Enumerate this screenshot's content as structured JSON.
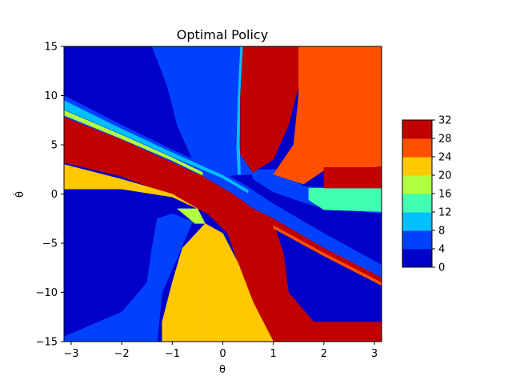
{
  "chart_data": {
    "type": "heatmap",
    "title": "Optimal Policy",
    "xlabel": "θ",
    "ylabel": "θ̇",
    "xlim": [
      -3.14159,
      3.14159
    ],
    "ylim": [
      -15,
      15
    ],
    "x_ticks": [
      -3,
      -2,
      -1,
      0,
      1,
      2,
      3
    ],
    "y_ticks": [
      -15,
      -10,
      -5,
      0,
      5,
      10,
      15
    ],
    "colorbar": {
      "levels": [
        0,
        4,
        8,
        12,
        16,
        20,
        24,
        28,
        32
      ],
      "colors": [
        "#0000c8",
        "#0040ff",
        "#00c0ff",
        "#40ffb0",
        "#b0ff40",
        "#ffc800",
        "#ff5000",
        "#c00000"
      ]
    },
    "regions": [
      {
        "level_index": 0,
        "polygon": [
          [
            -3.14159,
            -15
          ],
          [
            3.14159,
            -15
          ],
          [
            3.14159,
            15
          ],
          [
            -3.14159,
            15
          ]
        ]
      },
      {
        "level_index": 1,
        "polygon": [
          [
            -1.4,
            15
          ],
          [
            0.35,
            15
          ],
          [
            0.3,
            10
          ],
          [
            0.25,
            5
          ],
          [
            0.6,
            2
          ],
          [
            -0.1,
            1.8
          ],
          [
            -0.6,
            3.5
          ],
          [
            -0.9,
            7
          ],
          [
            -1.1,
            11
          ],
          [
            -1.4,
            15
          ]
        ]
      },
      {
        "level_index": 1,
        "polygon": [
          [
            -3.14159,
            10
          ],
          [
            -2.0,
            7.0
          ],
          [
            -1.0,
            4.5
          ],
          [
            0.0,
            2.2
          ],
          [
            0.5,
            0.7
          ],
          [
            1.0,
            -1.0
          ],
          [
            2.0,
            -4.0
          ],
          [
            3.14159,
            -7.2
          ],
          [
            3.14159,
            -9.2
          ],
          [
            2.0,
            -6.0
          ],
          [
            1.0,
            -3.0
          ],
          [
            0.3,
            -1.2
          ],
          [
            -0.5,
            0.6
          ],
          [
            -1.5,
            3.0
          ],
          [
            -2.5,
            6.0
          ],
          [
            -3.14159,
            7.8
          ]
        ]
      },
      {
        "level_index": 1,
        "polygon": [
          [
            -3.14159,
            -14.5
          ],
          [
            -2.0,
            -12.0
          ],
          [
            -1.5,
            -9.0
          ],
          [
            -1.4,
            -5.5
          ],
          [
            -1.3,
            -2.5
          ],
          [
            -1.0,
            -2.0
          ],
          [
            -0.6,
            -2.8
          ],
          [
            -0.9,
            -6.5
          ],
          [
            -1.2,
            -10
          ],
          [
            -1.3,
            -15
          ],
          [
            -3.14159,
            -15
          ]
        ]
      },
      {
        "level_index": 1,
        "polygon": [
          [
            0.55,
            2.5
          ],
          [
            1.1,
            2.5
          ],
          [
            1.6,
            0.8
          ],
          [
            3.14159,
            0.2
          ],
          [
            3.14159,
            -2.0
          ],
          [
            1.8,
            -1.2
          ],
          [
            1.0,
            0.2
          ],
          [
            0.6,
            1.5
          ]
        ]
      },
      {
        "level_index": 2,
        "polygon": [
          [
            -3.14159,
            9.5
          ],
          [
            -2.0,
            6.6
          ],
          [
            -1.0,
            4.2
          ],
          [
            0.0,
            1.9
          ],
          [
            0.5,
            0.4
          ],
          [
            0.5,
            0.1
          ],
          [
            0.0,
            1.6
          ],
          [
            -1.0,
            3.8
          ],
          [
            -2.0,
            6.1
          ],
          [
            -3.14159,
            8.6
          ]
        ]
      },
      {
        "level_index": 2,
        "polygon": [
          [
            0.35,
            15
          ],
          [
            0.3,
            10
          ],
          [
            0.27,
            5
          ],
          [
            0.3,
            2.0
          ],
          [
            0.35,
            2.0
          ],
          [
            0.33,
            5
          ],
          [
            0.34,
            10
          ],
          [
            0.4,
            15
          ]
        ]
      },
      {
        "level_index": 3,
        "polygon": [
          [
            1.7,
            0.6
          ],
          [
            3.14159,
            0.6
          ],
          [
            3.14159,
            -1.8
          ],
          [
            2.0,
            -1.6
          ],
          [
            1.7,
            -0.6
          ]
        ]
      },
      {
        "level_index": 4,
        "polygon": [
          [
            -3.14159,
            8.5
          ],
          [
            -2.0,
            6.0
          ],
          [
            -1.0,
            3.7
          ],
          [
            -0.4,
            2.2
          ],
          [
            -0.4,
            1.9
          ],
          [
            -1.0,
            3.4
          ],
          [
            -2.0,
            5.6
          ],
          [
            -3.14159,
            8.0
          ]
        ]
      },
      {
        "level_index": 7,
        "polygon": [
          [
            0.4,
            15
          ],
          [
            1.5,
            15
          ],
          [
            1.5,
            11
          ],
          [
            1.3,
            7
          ],
          [
            1.0,
            3.5
          ],
          [
            0.6,
            2.2
          ],
          [
            0.35,
            4
          ],
          [
            0.35,
            10
          ]
        ]
      },
      {
        "level_index": 6,
        "polygon": [
          [
            1.5,
            15
          ],
          [
            3.14159,
            15
          ],
          [
            3.14159,
            2.8
          ],
          [
            2.0,
            2.4
          ],
          [
            1.6,
            1.0
          ],
          [
            1.0,
            2.0
          ],
          [
            1.4,
            5.0
          ],
          [
            1.5,
            10
          ]
        ]
      },
      {
        "level_index": 7,
        "polygon": [
          [
            2.0,
            2.7
          ],
          [
            3.14159,
            2.7
          ],
          [
            3.14159,
            0.6
          ],
          [
            2.0,
            0.6
          ]
        ]
      },
      {
        "level_index": 7,
        "polygon": [
          [
            -3.14159,
            7.8
          ],
          [
            -2.0,
            5.5
          ],
          [
            -1.0,
            3.2
          ],
          [
            -0.4,
            1.8
          ],
          [
            0.2,
            0.0
          ],
          [
            0.6,
            -1.5
          ],
          [
            1.0,
            -3.0
          ],
          [
            1.2,
            -6.0
          ],
          [
            1.3,
            -10.0
          ],
          [
            1.8,
            -13.0
          ],
          [
            3.14159,
            -13.0
          ],
          [
            3.14159,
            -15
          ],
          [
            1.0,
            -15
          ],
          [
            0.6,
            -11.0
          ],
          [
            0.3,
            -7.0
          ],
          [
            0.1,
            -4.0
          ],
          [
            -0.3,
            -2.0
          ],
          [
            -1.0,
            -0.2
          ],
          [
            -2.0,
            1.8
          ],
          [
            -3.14159,
            3.2
          ]
        ]
      },
      {
        "level_index": 7,
        "polygon": [
          [
            0.6,
            -1.5
          ],
          [
            1.0,
            -2.5
          ],
          [
            2.0,
            -5.5
          ],
          [
            3.14159,
            -8.5
          ],
          [
            3.14159,
            -9.0
          ],
          [
            2.0,
            -6.0
          ],
          [
            1.0,
            -3.2
          ],
          [
            0.5,
            -2.0
          ]
        ]
      },
      {
        "level_index": 6,
        "polygon": [
          [
            1.0,
            -3.2
          ],
          [
            2.0,
            -6.0
          ],
          [
            3.14159,
            -9.0
          ],
          [
            3.14159,
            -9.3
          ],
          [
            2.0,
            -6.3
          ],
          [
            1.0,
            -3.5
          ]
        ]
      },
      {
        "level_index": 5,
        "polygon": [
          [
            -3.14159,
            3.0
          ],
          [
            -2.0,
            1.5
          ],
          [
            -1.0,
            0.0
          ],
          [
            -0.5,
            -1.5
          ],
          [
            -1.0,
            -0.3
          ],
          [
            -2.0,
            0.5
          ],
          [
            -3.14159,
            0.5
          ]
        ]
      },
      {
        "level_index": 5,
        "polygon": [
          [
            -1.2,
            -15
          ],
          [
            -0.35,
            -15
          ],
          [
            -0.35,
            -3.0
          ],
          [
            -0.8,
            -5.5
          ],
          [
            -1.0,
            -9.0
          ],
          [
            -1.2,
            -13.0
          ]
        ]
      },
      {
        "level_index": 5,
        "polygon": [
          [
            -0.35,
            -3.0
          ],
          [
            0.0,
            -4.0
          ],
          [
            0.3,
            -7.0
          ],
          [
            0.6,
            -11.0
          ],
          [
            1.0,
            -15
          ],
          [
            -0.35,
            -15
          ]
        ]
      },
      {
        "level_index": 4,
        "polygon": [
          [
            -0.9,
            -1.5
          ],
          [
            -0.5,
            -1.5
          ],
          [
            -0.35,
            -3.0
          ],
          [
            -0.55,
            -3.0
          ]
        ]
      }
    ]
  }
}
